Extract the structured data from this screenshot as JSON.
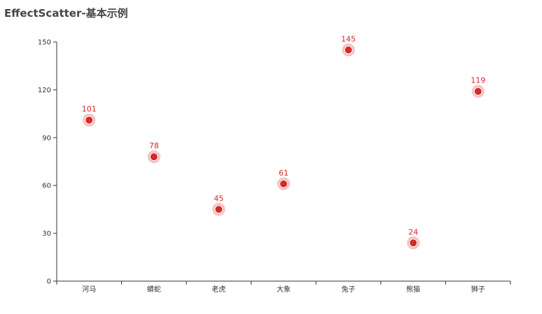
{
  "chart_data": {
    "type": "scatter",
    "title": "EffectScatter-基本示例",
    "categories": [
      "河马",
      "蟒蛇",
      "老虎",
      "大象",
      "兔子",
      "熊猫",
      "狮子"
    ],
    "values": [
      101,
      78,
      45,
      61,
      145,
      24,
      119
    ],
    "ylim": [
      0,
      150
    ],
    "yticks": [
      0,
      30,
      60,
      90,
      120,
      150
    ],
    "xlabel": "",
    "ylabel": "",
    "grid": false,
    "show_value_labels": true,
    "marker": "effect-ripple",
    "colors": {
      "point": "#d42a2a",
      "ripple": "#e06666",
      "axis": "#333333"
    }
  }
}
